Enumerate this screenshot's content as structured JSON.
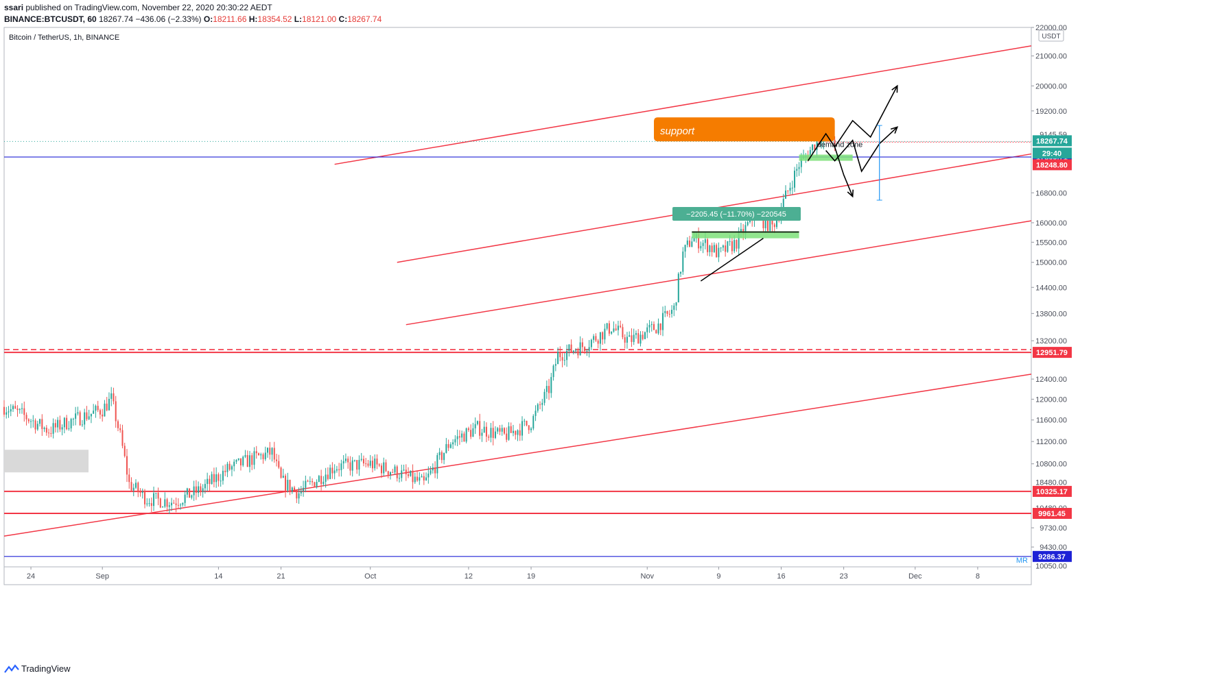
{
  "header": {
    "publisher": "ssari",
    "published_text": "published on TradingView.com, November 22, 2020 20:30:22 AEDT",
    "symbol": "BINANCE:BTCUSDT, 60",
    "last": "18267.74",
    "change": "−436.06 (−2.33%)",
    "o_label": "O:",
    "o": "18211.66",
    "h_label": "H:",
    "h": "18354.52",
    "l_label": "L:",
    "l": "18121.00",
    "c_label": "C:",
    "c": "18267.74"
  },
  "footer": {
    "brand": "TradingView"
  },
  "colors": {
    "up": "#26a69a",
    "down": "#ef5350",
    "channel": "#f23645",
    "blue_line": "#1e22d6",
    "price_tag": "#26a69a",
    "support_box": "#f57c00",
    "zone_green": "#7ee07a",
    "measure": "#4caf93"
  },
  "chart_data": {
    "type": "candlestick",
    "title": "Bitcoin / TetherUS, 1h, BINANCE",
    "currency": "USDT",
    "y_scale": "log",
    "ylim": [
      9130,
      22000
    ],
    "y_ticks": [
      "22000.00",
      "21000.00",
      "20000.00",
      "19200.00",
      "16800.00",
      "16000.00",
      "15500.00",
      "15000.00",
      "14400.00",
      "13800.00",
      "13200.00",
      "12400.00",
      "12000.00",
      "11600.00",
      "11200.00",
      "10800.00",
      "9730.00",
      "9430.00"
    ],
    "x_ticks": [
      "24",
      "Sep",
      "14",
      "21",
      "Oct",
      "12",
      "19",
      "Nov",
      "9",
      "16",
      "23",
      "Dec",
      "8"
    ],
    "x_range": [
      "2020-08-21",
      "2020-12-14"
    ],
    "price_path": [
      [
        "2020-08-21",
        11850
      ],
      [
        "2020-08-23",
        11700
      ],
      [
        "2020-08-26",
        11400
      ],
      [
        "2020-08-28",
        11550
      ],
      [
        "2020-09-01",
        11800
      ],
      [
        "2020-09-02",
        12000
      ],
      [
        "2020-09-03",
        11300
      ],
      [
        "2020-09-04",
        10450
      ],
      [
        "2020-09-06",
        10200
      ],
      [
        "2020-09-09",
        10150
      ],
      [
        "2020-09-12",
        10350
      ],
      [
        "2020-09-15",
        10700
      ],
      [
        "2020-09-18",
        10900
      ],
      [
        "2020-09-20",
        11000
      ],
      [
        "2020-09-21",
        10500
      ],
      [
        "2020-09-23",
        10300
      ],
      [
        "2020-09-27",
        10750
      ],
      [
        "2020-10-01",
        10800
      ],
      [
        "2020-10-04",
        10650
      ],
      [
        "2020-10-07",
        10450
      ],
      [
        "2020-10-10",
        11200
      ],
      [
        "2020-10-13",
        11450
      ],
      [
        "2020-10-16",
        11300
      ],
      [
        "2020-10-19",
        11550
      ],
      [
        "2020-10-21",
        12200
      ],
      [
        "2020-10-22",
        12900
      ],
      [
        "2020-10-25",
        13100
      ],
      [
        "2020-10-28",
        13500
      ],
      [
        "2020-10-30",
        13200
      ],
      [
        "2020-11-02",
        13500
      ],
      [
        "2020-11-04",
        13900
      ],
      [
        "2020-11-05",
        15200
      ],
      [
        "2020-11-06",
        15600
      ],
      [
        "2020-11-08",
        15400
      ],
      [
        "2020-11-09",
        15200
      ],
      [
        "2020-11-11",
        15500
      ],
      [
        "2020-11-13",
        16200
      ],
      [
        "2020-11-15",
        15900
      ],
      [
        "2020-11-16",
        16400
      ],
      [
        "2020-11-18",
        17600
      ],
      [
        "2020-11-19",
        17900
      ],
      [
        "2020-11-20",
        18300
      ],
      [
        "2020-11-21",
        18600
      ],
      [
        "2020-11-22",
        18267.74
      ]
    ],
    "horizontal_levels": [
      {
        "label": "12951.79",
        "price": 12951.79,
        "color": "#f23645",
        "dashed_above": 13010
      },
      {
        "label": "10325.17",
        "price": 10325.17,
        "color": "#f23645"
      },
      {
        "label": "9961.45",
        "price": 9961.45,
        "color": "#f23645"
      },
      {
        "label": "9286.37",
        "price": 9286.37,
        "color": "#1e22d6",
        "tag_color": "#1e22d6"
      },
      {
        "label": "17809.71",
        "price": 17809.71,
        "color": "#1e22d6",
        "tag_color": "#1e22d6"
      }
    ],
    "price_tags": [
      {
        "label": "18267.74",
        "color": "#26a69a"
      },
      {
        "label": "29:40",
        "color": "#26a69a"
      },
      {
        "label": "18248.80",
        "color": "#f23645"
      }
    ],
    "partial_axis_labels": [
      "9145.59",
      "18480.00",
      "10480.00",
      "10050.00"
    ],
    "mr_label": "MR",
    "trendlines": [
      {
        "from": [
          "2020-09-27",
          17600
        ],
        "to": [
          "2020-12-14",
          21350
        ]
      },
      {
        "from": [
          "2020-10-04",
          15000
        ],
        "to": [
          "2020-12-14",
          17900
        ]
      },
      {
        "from": [
          "2020-10-05",
          13550
        ],
        "to": [
          "2020-12-14",
          16050
        ]
      },
      {
        "from": [
          "2020-08-21",
          9600
        ],
        "to": [
          "2020-12-14",
          12500
        ]
      }
    ],
    "annotations": {
      "support_label": "support",
      "demand_label": "demand zone",
      "measure_text": "−2205.45 (−11.70%) −220545"
    }
  }
}
